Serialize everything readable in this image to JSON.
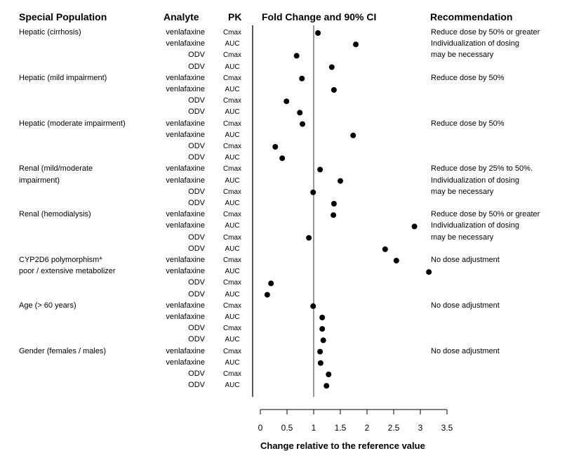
{
  "chart_data": {
    "type": "scatter",
    "title": "",
    "headers": {
      "population": "Special Population",
      "analyte": "Analyte",
      "pk": "PK",
      "plot": "Fold Change and 90% CI",
      "recommendation": "Recommendation"
    },
    "xlabel": "Change relative to the reference value",
    "xlim": [
      0,
      3.5
    ],
    "xticks": [
      "0",
      "0.5",
      "1",
      "1.5",
      "2",
      "2.5",
      "3",
      "3.5"
    ],
    "reference_line": 1,
    "grid": false,
    "rows": [
      {
        "population": "Hepatic (cirrhosis)",
        "analyte": "venlafaxine",
        "pk": "Cmax",
        "value": 1.08,
        "recommendation": "Reduce dose by 50% or greater"
      },
      {
        "population": "",
        "analyte": "venlafaxine",
        "pk": "AUC",
        "value": 1.79,
        "recommendation": "Individualization of dosing"
      },
      {
        "population": "",
        "analyte": "ODV",
        "pk": "Cmax",
        "value": 0.68,
        "recommendation": "may be necessary"
      },
      {
        "population": "",
        "analyte": "ODV",
        "pk": "AUC",
        "value": 1.34,
        "recommendation": ""
      },
      {
        "population": "Hepatic (mild impairment)",
        "analyte": "venlafaxine",
        "pk": "Cmax",
        "value": 0.78,
        "recommendation": "Reduce dose by 50%"
      },
      {
        "population": "",
        "analyte": "venlafaxine",
        "pk": "AUC",
        "value": 1.38,
        "recommendation": ""
      },
      {
        "population": "",
        "analyte": "ODV",
        "pk": "Cmax",
        "value": 0.49,
        "recommendation": ""
      },
      {
        "population": "",
        "analyte": "ODV",
        "pk": "AUC",
        "value": 0.74,
        "recommendation": ""
      },
      {
        "population": "Hepatic (moderate impairment)",
        "analyte": "venlafaxine",
        "pk": "Cmax",
        "value": 0.79,
        "recommendation": "Reduce dose by 50%"
      },
      {
        "population": "",
        "analyte": "venlafaxine",
        "pk": "AUC",
        "value": 1.74,
        "recommendation": ""
      },
      {
        "population": "",
        "analyte": "ODV",
        "pk": "Cmax",
        "value": 0.28,
        "recommendation": ""
      },
      {
        "population": "",
        "analyte": "ODV",
        "pk": "AUC",
        "value": 0.41,
        "recommendation": ""
      },
      {
        "population": "Renal (mild/moderate",
        "analyte": "venlafaxine",
        "pk": "Cmax",
        "value": 1.12,
        "recommendation": "Reduce dose by 25% to 50%."
      },
      {
        "population": "impairment)",
        "analyte": "venlafaxine",
        "pk": "AUC",
        "value": 1.5,
        "recommendation": "Individualization of dosing"
      },
      {
        "population": "",
        "analyte": "ODV",
        "pk": "Cmax",
        "value": 0.99,
        "recommendation": "may be necessary"
      },
      {
        "population": "",
        "analyte": "ODV",
        "pk": "AUC",
        "value": 1.38,
        "recommendation": ""
      },
      {
        "population": "Renal (hemodialysis)",
        "analyte": "venlafaxine",
        "pk": "Cmax",
        "value": 1.37,
        "recommendation": "Reduce dose by 50% or greater"
      },
      {
        "population": "",
        "analyte": "venlafaxine",
        "pk": "AUC",
        "value": 2.89,
        "recommendation": "Individualization of dosing"
      },
      {
        "population": "",
        "analyte": "ODV",
        "pk": "Cmax",
        "value": 0.91,
        "recommendation": "may be necessary"
      },
      {
        "population": "",
        "analyte": "ODV",
        "pk": "AUC",
        "value": 2.34,
        "recommendation": ""
      },
      {
        "population": "CYP2D6 polymorphism*",
        "analyte": "venlafaxine",
        "pk": "Cmax",
        "value": 2.55,
        "recommendation": "No dose adjustment"
      },
      {
        "population": "poor / extensive metabolizer",
        "analyte": "venlafaxine",
        "pk": "AUC",
        "value": 3.16,
        "recommendation": ""
      },
      {
        "population": "",
        "analyte": "ODV",
        "pk": "Cmax",
        "value": 0.2,
        "recommendation": ""
      },
      {
        "population": "",
        "analyte": "ODV",
        "pk": "AUC",
        "value": 0.13,
        "recommendation": ""
      },
      {
        "population": "Age (> 60 years)",
        "analyte": "venlafaxine",
        "pk": "Cmax",
        "value": 0.99,
        "recommendation": "No dose adjustment"
      },
      {
        "population": "",
        "analyte": "venlafaxine",
        "pk": "AUC",
        "value": 1.16,
        "recommendation": ""
      },
      {
        "population": "",
        "analyte": "ODV",
        "pk": "Cmax",
        "value": 1.16,
        "recommendation": ""
      },
      {
        "population": "",
        "analyte": "ODV",
        "pk": "AUC",
        "value": 1.18,
        "recommendation": ""
      },
      {
        "population": "Gender (females / males)",
        "analyte": "venlafaxine",
        "pk": "Cmax",
        "value": 1.12,
        "recommendation": "No dose adjustment"
      },
      {
        "population": "",
        "analyte": "venlafaxine",
        "pk": "AUC",
        "value": 1.13,
        "recommendation": ""
      },
      {
        "population": "",
        "analyte": "ODV",
        "pk": "Cmax",
        "value": 1.28,
        "recommendation": ""
      },
      {
        "population": "",
        "analyte": "ODV",
        "pk": "AUC",
        "value": 1.24,
        "recommendation": ""
      }
    ]
  }
}
